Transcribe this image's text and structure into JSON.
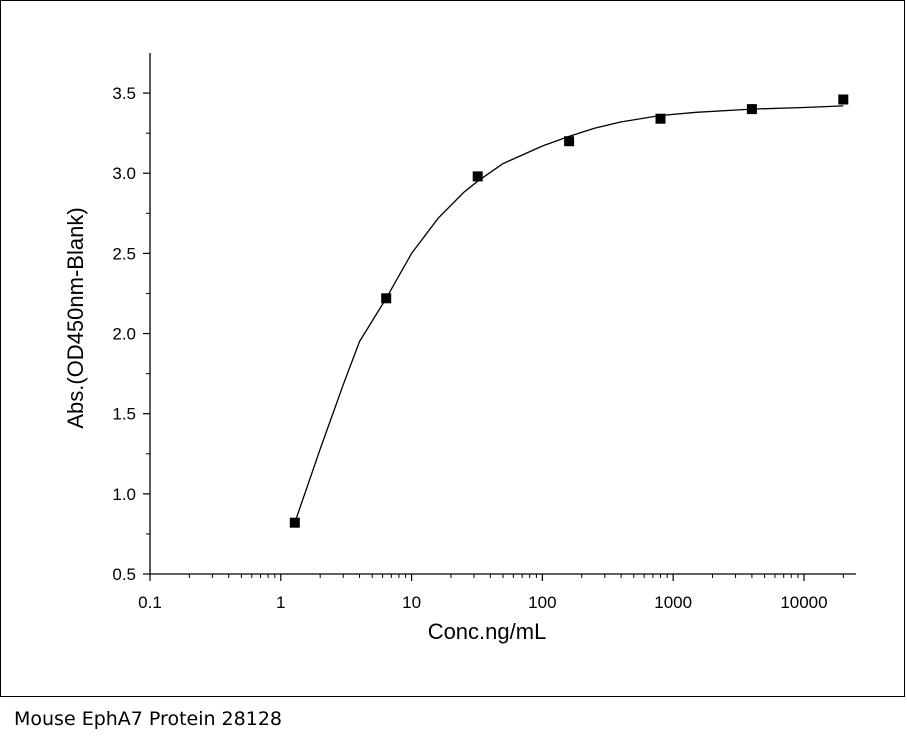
{
  "caption": "Mouse EphA7 Protein 28128",
  "chart_data": {
    "type": "scatter",
    "xlabel": "Conc.ng/mL",
    "ylabel": "Abs.(OD450nm-Blank)",
    "x_scale": "log",
    "xlim": [
      0.1,
      25000
    ],
    "ylim": [
      0.5,
      3.75
    ],
    "x_ticks": [
      0.1,
      1,
      10,
      100,
      1000,
      10000
    ],
    "x_tick_labels": [
      "0.1",
      "1",
      "10",
      "100",
      "1000",
      "10000"
    ],
    "y_ticks": [
      0.5,
      1.0,
      1.5,
      2.0,
      2.5,
      3.0,
      3.5
    ],
    "y_tick_labels": [
      "0.5",
      "1.0",
      "1.5",
      "2.0",
      "2.5",
      "3.0",
      "3.5"
    ],
    "grid": false,
    "legend": "none",
    "series": [
      {
        "x": [
          1.28,
          6.4,
          32,
          160,
          800,
          4000,
          20000
        ],
        "y": [
          0.82,
          2.22,
          2.98,
          3.2,
          3.34,
          3.4,
          3.46
        ]
      }
    ],
    "fit_curve": {
      "x": [
        1.28,
        2,
        3,
        4,
        6.4,
        10,
        16,
        25,
        32,
        50,
        100,
        160,
        250,
        400,
        800,
        1500,
        4000,
        10000,
        20000
      ],
      "y": [
        0.82,
        1.28,
        1.68,
        1.95,
        2.22,
        2.5,
        2.72,
        2.88,
        2.95,
        3.06,
        3.17,
        3.23,
        3.28,
        3.32,
        3.36,
        3.38,
        3.4,
        3.41,
        3.42
      ]
    },
    "colors": {
      "marker": "#000000",
      "curve": "#000000",
      "axis": "#000000"
    }
  }
}
